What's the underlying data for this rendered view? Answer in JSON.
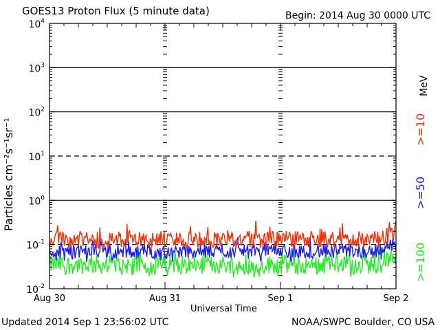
{
  "header": {
    "title": "GOES13 Proton Flux (5 minute data)",
    "begin": "Begin: 2014 Aug 30 0000 UTC"
  },
  "footer": {
    "updated": "Updated 2014 Sep  1 23:56:02 UTC",
    "source": "NOAA/SWPC Boulder, CO USA"
  },
  "chart_data": {
    "type": "line",
    "title": "GOES13 Proton Flux (5 minute data)",
    "xlabel": "Universal Time",
    "ylabel": "Particles cm⁻²s⁻¹sr⁻¹",
    "yscale": "log",
    "ylim": [
      0.01,
      10000
    ],
    "xlim": [
      "2014-08-30 00:00",
      "2014-09-02 00:00"
    ],
    "x_ticks": [
      "Aug 30",
      "Aug 31",
      "Sep 1",
      "Sep 2"
    ],
    "y_ticks": [
      {
        "base": "10",
        "exp": "-2"
      },
      {
        "base": "10",
        "exp": "-1"
      },
      {
        "base": "10",
        "exp": "0"
      },
      {
        "base": "10",
        "exp": "1"
      },
      {
        "base": "10",
        "exp": "2"
      },
      {
        "base": "10",
        "exp": "3"
      },
      {
        "base": "10",
        "exp": "4"
      }
    ],
    "unit_label": "MeV",
    "series": [
      {
        "name": ">=10",
        "color": "#ff2a00",
        "typical_value": 0.13,
        "range": [
          0.08,
          0.35
        ]
      },
      {
        "name": ">=50",
        "color": "#1a1aff",
        "typical_value": 0.07,
        "range": [
          0.04,
          0.14
        ]
      },
      {
        "name": ">=100",
        "color": "#22ee22",
        "typical_value": 0.035,
        "range": [
          0.018,
          0.09
        ]
      }
    ],
    "threshold_lines": [
      0.1,
      10
    ]
  }
}
